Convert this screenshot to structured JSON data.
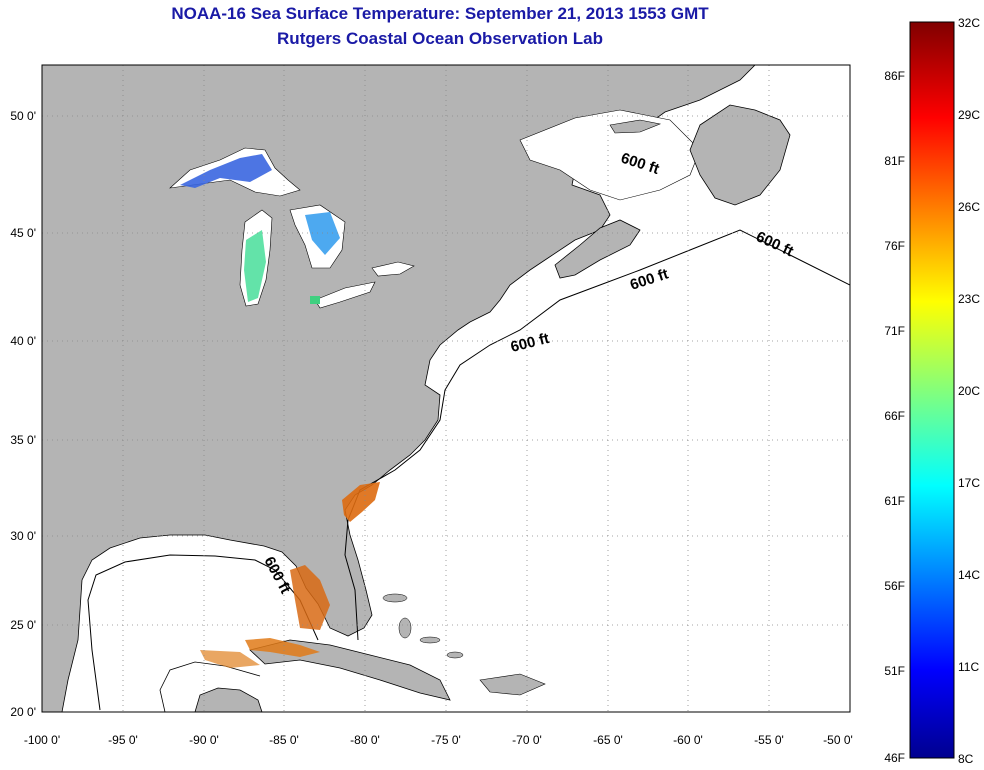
{
  "title": "NOAA-16 Sea Surface Temperature:  September 21, 2013 1553 GMT",
  "subtitle": "Rutgers Coastal Ocean Observation Lab",
  "colors": {
    "land": "#b4b4b4",
    "ocean": "#ffffff",
    "title": "#1a1aa6"
  },
  "map": {
    "lat_labels": [
      "50 0'",
      "45 0'",
      "40 0'",
      "35 0'",
      "30 0'",
      "25 0'",
      "20 0'"
    ],
    "lon_labels": [
      "-100 0'",
      "-95 0'",
      "-90 0'",
      "-85 0'",
      "-80 0'",
      "-75 0'",
      "-70 0'",
      "-65 0'",
      "-60 0'",
      "-55 0'",
      "-50 0'"
    ],
    "isobath_labels": [
      "600 ft",
      "600 ft",
      "600 ft",
      "600 ft",
      "600 ft"
    ]
  },
  "colorbar": {
    "celsius_labels": [
      "32C",
      "29C",
      "26C",
      "23C",
      "20C",
      "17C",
      "14C",
      "11C",
      "8C"
    ],
    "fahrenheit_labels": [
      "86F",
      "81F",
      "76F",
      "71F",
      "66F",
      "61F",
      "56F",
      "51F",
      "46F"
    ]
  }
}
